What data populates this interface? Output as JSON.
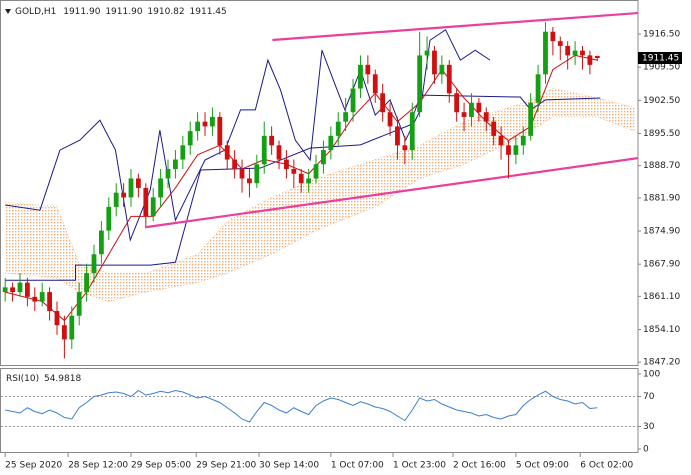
{
  "chart_data": {
    "type": "candlestick",
    "symbol": "GOLD,H1",
    "quote": [
      "1911.90",
      "1911.90",
      "1910.82",
      "1911.45"
    ],
    "up_color": "#13a013",
    "down_color": "#d01010",
    "ylim": [
      1846.6,
      1923.7
    ],
    "yticks": [
      {
        "value": 1916.5,
        "label": "1916.50"
      },
      {
        "value": 1909.5,
        "label": "1909.50"
      },
      {
        "value": 1902.5,
        "label": "1902.50"
      },
      {
        "value": 1895.5,
        "label": "1895.50"
      },
      {
        "value": 1888.7,
        "label": "1888.70"
      },
      {
        "value": 1881.9,
        "label": "1881.90"
      },
      {
        "value": 1874.9,
        "label": "1874.90"
      },
      {
        "value": 1867.9,
        "label": "1867.90"
      },
      {
        "value": 1861.1,
        "label": "1861.10"
      },
      {
        "value": 1854.1,
        "label": "1854.10"
      },
      {
        "value": 1847.2,
        "label": "1847.20"
      }
    ],
    "xlim": [
      -0.7,
      85.5
    ],
    "xticks": [
      {
        "value": 0,
        "label": "25 Sep 2020"
      },
      {
        "value": 8.5,
        "label": "28 Sep 12:00"
      },
      {
        "value": 17,
        "label": "29 Sep 05:00"
      },
      {
        "value": 25.8,
        "label": "29 Sep 21:00"
      },
      {
        "value": 34.3,
        "label": "30 Sep 14:00"
      },
      {
        "value": 44,
        "label": "1 Oct 07:00"
      },
      {
        "value": 52.4,
        "label": "1 Oct 23:00"
      },
      {
        "value": 60.5,
        "label": "2 Oct 16:00"
      },
      {
        "value": 69,
        "label": "5 Oct 09:00"
      },
      {
        "value": 77.7,
        "label": "6 Oct 02:00"
      }
    ],
    "last_price": 1911.45,
    "candles": [
      [
        1862,
        1865,
        1860,
        1863
      ],
      [
        1863,
        1864,
        1860,
        1862
      ],
      [
        1862,
        1866,
        1861,
        1864
      ],
      [
        1864,
        1865,
        1859,
        1861
      ],
      [
        1861,
        1863,
        1858,
        1860
      ],
      [
        1860,
        1864,
        1859,
        1862
      ],
      [
        1862,
        1863,
        1856,
        1858
      ],
      [
        1858,
        1860,
        1853,
        1855
      ],
      [
        1855,
        1857,
        1848,
        1852
      ],
      [
        1852,
        1859,
        1850,
        1857
      ],
      [
        1857,
        1864,
        1855,
        1862
      ],
      [
        1862,
        1868,
        1860,
        1866
      ],
      [
        1866,
        1872,
        1864,
        1870
      ],
      [
        1870,
        1877,
        1868,
        1875
      ],
      [
        1875,
        1882,
        1873,
        1880
      ],
      [
        1880,
        1885,
        1878,
        1883
      ],
      [
        1883,
        1885,
        1880,
        1882
      ],
      [
        1882,
        1888,
        1880,
        1886
      ],
      [
        1886,
        1887,
        1882,
        1884
      ],
      [
        1884,
        1885,
        1876,
        1878
      ],
      [
        1878,
        1884,
        1877,
        1882
      ],
      [
        1882,
        1888,
        1880,
        1886
      ],
      [
        1886,
        1890,
        1884,
        1888
      ],
      [
        1888,
        1892,
        1886,
        1890
      ],
      [
        1890,
        1895,
        1888,
        1893
      ],
      [
        1893,
        1898,
        1891,
        1896
      ],
      [
        1896,
        1900,
        1894,
        1898
      ],
      [
        1898,
        1900,
        1895,
        1897
      ],
      [
        1897,
        1901,
        1895,
        1899
      ],
      [
        1899,
        1900,
        1891,
        1893
      ],
      [
        1893,
        1894,
        1888,
        1890
      ],
      [
        1890,
        1892,
        1886,
        1888
      ],
      [
        1888,
        1890,
        1883,
        1886
      ],
      [
        1886,
        1888,
        1882,
        1885
      ],
      [
        1885,
        1891,
        1884,
        1889
      ],
      [
        1889,
        1898,
        1887,
        1895
      ],
      [
        1895,
        1897,
        1891,
        1893
      ],
      [
        1893,
        1894,
        1888,
        1890
      ],
      [
        1890,
        1892,
        1886,
        1888
      ],
      [
        1888,
        1890,
        1884,
        1887
      ],
      [
        1887,
        1888,
        1883,
        1885
      ],
      [
        1885,
        1888,
        1883,
        1886
      ],
      [
        1886,
        1891,
        1885,
        1889
      ],
      [
        1889,
        1894,
        1887,
        1892
      ],
      [
        1892,
        1897,
        1890,
        1895
      ],
      [
        1895,
        1900,
        1893,
        1898
      ],
      [
        1898,
        1903,
        1896,
        1900
      ],
      [
        1900,
        1907,
        1898,
        1905
      ],
      [
        1905,
        1912,
        1903,
        1910
      ],
      [
        1910,
        1912,
        1906,
        1908
      ],
      [
        1908,
        1909,
        1902,
        1904
      ],
      [
        1904,
        1906,
        1898,
        1900
      ],
      [
        1900,
        1902,
        1895,
        1897
      ],
      [
        1897,
        1899,
        1890,
        1893
      ],
      [
        1893,
        1895,
        1889,
        1892
      ],
      [
        1892,
        1902,
        1890,
        1900
      ],
      [
        1900,
        1917,
        1899,
        1912
      ],
      [
        1912,
        1916,
        1909,
        1913
      ],
      [
        1913,
        1914,
        1906,
        1908
      ],
      [
        1908,
        1912,
        1906,
        1910
      ],
      [
        1910,
        1911,
        1902,
        1904
      ],
      [
        1904,
        1905,
        1898,
        1900
      ],
      [
        1900,
        1902,
        1896,
        1899
      ],
      [
        1899,
        1904,
        1897,
        1902
      ],
      [
        1902,
        1903,
        1898,
        1900
      ],
      [
        1900,
        1901,
        1896,
        1898
      ],
      [
        1898,
        1899,
        1893,
        1895
      ],
      [
        1895,
        1897,
        1890,
        1893
      ],
      [
        1893,
        1894,
        1886,
        1891
      ],
      [
        1891,
        1895,
        1889,
        1893
      ],
      [
        1893,
        1897,
        1891,
        1895
      ],
      [
        1895,
        1904,
        1894,
        1902
      ],
      [
        1902,
        1910,
        1900,
        1908
      ],
      [
        1908,
        1919,
        1906,
        1917
      ],
      [
        1917,
        1918,
        1912,
        1915
      ],
      [
        1915,
        1916,
        1911,
        1914
      ],
      [
        1914,
        1915,
        1909,
        1912
      ],
      [
        1912,
        1915,
        1910,
        1913
      ],
      [
        1913,
        1914,
        1909,
        1912
      ],
      [
        1912,
        1913,
        1908,
        1910
      ],
      [
        1911.9,
        1911.9,
        1910.82,
        1911.45
      ]
    ],
    "cloud": {
      "color": "#f0a060",
      "x": [
        0,
        7,
        10,
        14,
        19,
        26,
        30,
        36,
        42,
        50,
        56,
        62,
        66,
        70,
        74,
        80,
        85
      ],
      "upper": [
        1881,
        1880,
        1868,
        1866,
        1866,
        1870,
        1877,
        1882,
        1886,
        1890,
        1893,
        1898,
        1900,
        1902,
        1905,
        1903,
        1901
      ],
      "lower": [
        1866,
        1865,
        1862,
        1860,
        1862,
        1864,
        1866,
        1870,
        1875,
        1880,
        1886,
        1889,
        1892,
        1895,
        1899,
        1899,
        1896
      ]
    },
    "lines": [
      {
        "color": "#1a1a8c",
        "x": [
          0,
          4.7,
          7.4,
          10.1,
          12.8,
          14.9,
          16.9,
          19.6,
          20.9,
          23,
          25,
          27,
          29.7,
          31.8,
          33.8,
          35.5,
          37.2,
          39.2,
          41.2,
          42.8,
          44.6,
          45.9,
          48,
          50,
          52,
          54.1,
          56.1,
          57.4,
          59.5,
          61.5,
          63.5,
          65.5
        ],
        "values": [
          1880.4,
          1879.3,
          1892,
          1894.1,
          1898.3,
          1892,
          1873,
          1883.6,
          1896.2,
          1877.2,
          1883.6,
          1889.9,
          1892,
          1900.5,
          1900.5,
          1911,
          1904.7,
          1894.1,
          1889.9,
          1913.1,
          1905.7,
          1900.5,
          1908.9,
          1899.4,
          1902.6,
          1894.1,
          1900.5,
          1915.2,
          1917.4,
          1911,
          1913.1,
          1911
        ]
      },
      {
        "color": "#1a1a8c",
        "x": [
          0,
          9.5,
          9.5,
          19.6,
          23,
          26.4,
          34.5,
          41.2,
          48,
          54.7,
          56.1,
          69.6,
          71,
          73,
          80.4
        ],
        "values": [
          1864.5,
          1864.5,
          1867.7,
          1867.7,
          1868.3,
          1887.8,
          1888.2,
          1892.4,
          1893.1,
          1897.3,
          1903.6,
          1903.2,
          1900.5,
          1902.6,
          1903
        ]
      },
      {
        "color": "#cc1010",
        "x": [
          0,
          5,
          8,
          11,
          14,
          17,
          20,
          23,
          26,
          29,
          32,
          35,
          38,
          41,
          44,
          47,
          50,
          53,
          56,
          59,
          62,
          65,
          68,
          71,
          74,
          77,
          80
        ],
        "values": [
          1862,
          1860,
          1856,
          1862,
          1870,
          1878,
          1878,
          1884,
          1891,
          1893,
          1888,
          1890,
          1889,
          1887,
          1892,
          1899,
          1904,
          1898,
          1902,
          1909,
          1903,
          1898,
          1894,
          1897,
          1909,
          1912,
          1911
        ]
      }
    ],
    "trendlines": [
      {
        "color": "#e8409c",
        "x": [
          36.1,
          85.5
        ],
        "values": [
          1915.25,
          1920.95
        ]
      },
      {
        "color": "#e8409c",
        "x": [
          18.9,
          85.5
        ],
        "values": [
          1875.7,
          1890.3
        ]
      }
    ],
    "rsi": {
      "label": "RSI(10)",
      "value": 54.9818,
      "color": "#3b7fd0",
      "ylim": [
        0,
        100
      ],
      "yticks": [
        100,
        70,
        30,
        0
      ],
      "levels": [
        70,
        30
      ],
      "values": [
        52,
        50,
        48,
        55,
        50,
        47,
        52,
        48,
        42,
        40,
        55,
        62,
        70,
        72,
        75,
        76,
        74,
        70,
        78,
        72,
        74,
        77,
        75,
        78,
        76,
        72,
        68,
        70,
        66,
        62,
        55,
        48,
        40,
        36,
        50,
        62,
        58,
        52,
        48,
        55,
        50,
        46,
        58,
        64,
        68,
        66,
        62,
        58,
        63,
        60,
        56,
        54,
        50,
        44,
        38,
        52,
        68,
        64,
        66,
        60,
        56,
        52,
        50,
        48,
        44,
        46,
        42,
        40,
        44,
        46,
        58,
        66,
        72,
        77,
        70,
        66,
        64,
        60,
        62,
        54,
        54.9818
      ]
    }
  }
}
